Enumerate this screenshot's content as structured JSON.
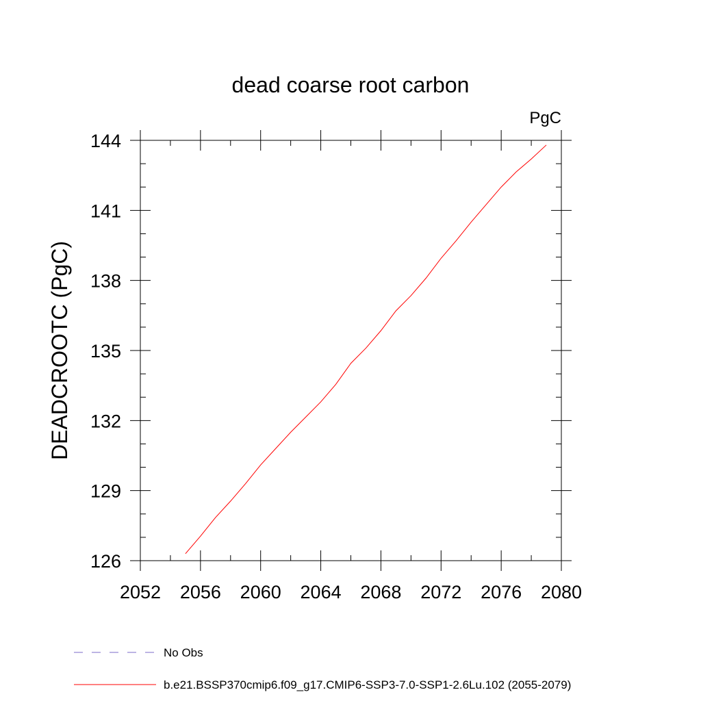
{
  "chart_data": {
    "type": "line",
    "title": "dead coarse root carbon",
    "units_label": "PgC",
    "ylabel": "DEADCROOTC  (PgC)",
    "xlabel": "",
    "xlim": [
      2052,
      2080
    ],
    "ylim": [
      126,
      144
    ],
    "x_ticks": [
      2052,
      2056,
      2060,
      2064,
      2068,
      2072,
      2076,
      2080
    ],
    "y_ticks": [
      126,
      129,
      132,
      135,
      138,
      141,
      144
    ],
    "x_minor_step": 2,
    "y_minor_step": 1,
    "grid": false,
    "legend_position": "bottom",
    "series": [
      {
        "name": "b.e21.BSSP370cmip6.f09_g17.CMIP6-SSP3-7.0-SSP1-2.6Lu.102 (2055-2079)",
        "color": "#ff0000",
        "style": "solid",
        "x": [
          2055,
          2056,
          2057,
          2058,
          2059,
          2060,
          2061,
          2062,
          2063,
          2064,
          2065,
          2066,
          2067,
          2068,
          2069,
          2070,
          2071,
          2072,
          2073,
          2074,
          2075,
          2076,
          2077,
          2078,
          2079
        ],
        "values": [
          126.3,
          127.05,
          127.85,
          128.55,
          129.3,
          130.1,
          130.8,
          131.5,
          132.15,
          132.8,
          133.55,
          134.45,
          135.1,
          135.85,
          136.7,
          137.35,
          138.1,
          138.95,
          139.7,
          140.5,
          141.25,
          142.0,
          142.65,
          143.2,
          143.8
        ]
      }
    ],
    "legend": [
      {
        "label": "No Obs",
        "color": "#7b68c8",
        "style": "dashed"
      },
      {
        "label": "b.e21.BSSP370cmip6.f09_g17.CMIP6-SSP3-7.0-SSP1-2.6Lu.102 (2055-2079)",
        "color": "#ff0000",
        "style": "solid"
      }
    ]
  }
}
